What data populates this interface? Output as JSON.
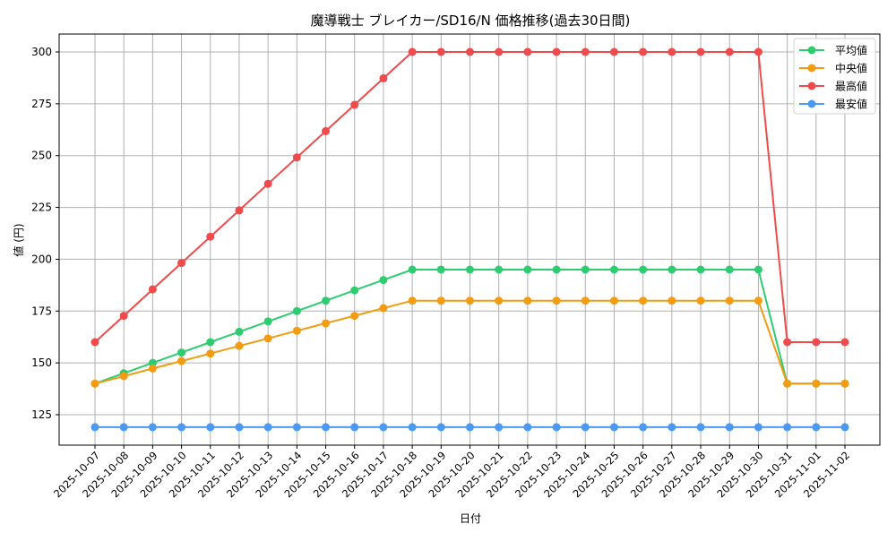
{
  "chart_data": {
    "type": "line",
    "title": "魔導戦士 ブレイカー/SD16/N 価格推移(過去30日間)",
    "xlabel": "日付",
    "ylabel": "値 (円)",
    "ylim": [
      110,
      308
    ],
    "yticks": [
      125,
      150,
      175,
      200,
      225,
      250,
      275,
      300
    ],
    "grid": true,
    "legend_position": "upper right",
    "categories": [
      "2025-10-07",
      "2025-10-08",
      "2025-10-09",
      "2025-10-10",
      "2025-10-11",
      "2025-10-12",
      "2025-10-13",
      "2025-10-14",
      "2025-10-15",
      "2025-10-16",
      "2025-10-17",
      "2025-10-18",
      "2025-10-19",
      "2025-10-20",
      "2025-10-21",
      "2025-10-22",
      "2025-10-23",
      "2025-10-24",
      "2025-10-25",
      "2025-10-26",
      "2025-10-27",
      "2025-10-28",
      "2025-10-29",
      "2025-10-30",
      "2025-10-31",
      "2025-11-01",
      "2025-11-02"
    ],
    "series": [
      {
        "name": "平均値",
        "color": "#2ecc71",
        "values": [
          140,
          145,
          150,
          155,
          160,
          165,
          170,
          175,
          180,
          185,
          190,
          195,
          195,
          195,
          195,
          195,
          195,
          195,
          195,
          195,
          195,
          195,
          195,
          195,
          140,
          140,
          140
        ]
      },
      {
        "name": "中央値",
        "color": "#f39c12",
        "values": [
          140,
          143.6,
          147.3,
          150.9,
          154.5,
          158.2,
          161.8,
          165.5,
          169.1,
          172.7,
          176.4,
          180,
          180,
          180,
          180,
          180,
          180,
          180,
          180,
          180,
          180,
          180,
          180,
          180,
          140,
          140,
          140
        ]
      },
      {
        "name": "最高値",
        "color": "#ef4b4c",
        "values": [
          160,
          172.7,
          185.5,
          198.2,
          210.9,
          223.6,
          236.4,
          249.1,
          261.8,
          274.5,
          287.3,
          300,
          300,
          300,
          300,
          300,
          300,
          300,
          300,
          300,
          300,
          300,
          300,
          300,
          160,
          160,
          160
        ]
      },
      {
        "name": "最安値",
        "color": "#4a9af5",
        "values": [
          119,
          119,
          119,
          119,
          119,
          119,
          119,
          119,
          119,
          119,
          119,
          119,
          119,
          119,
          119,
          119,
          119,
          119,
          119,
          119,
          119,
          119,
          119,
          119,
          119,
          119,
          119
        ]
      }
    ]
  }
}
